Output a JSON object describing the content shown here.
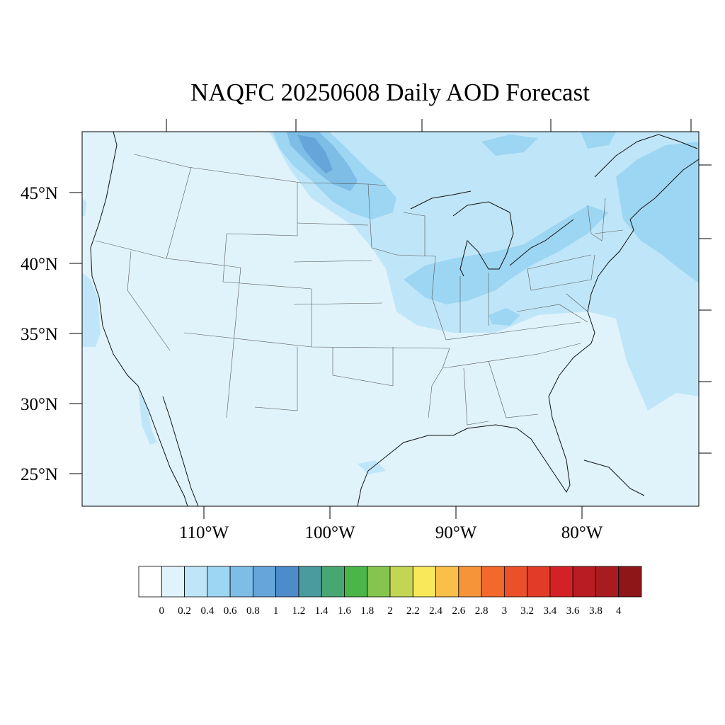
{
  "title": "NAQFC 20250608 Daily AOD Forecast",
  "lat_labels": [
    "45°N",
    "40°N",
    "35°N",
    "30°N",
    "25°N"
  ],
  "lon_labels": [
    "110°W",
    "100°W",
    "90°W",
    "80°W"
  ],
  "colorbar": {
    "labels": [
      "0",
      "0.2",
      "0.4",
      "0.6",
      "0.8",
      "1",
      "1.2",
      "1.4",
      "1.6",
      "1.8",
      "2",
      "2.2",
      "2.4",
      "2.6",
      "2.8",
      "3",
      "3.2",
      "3.4",
      "3.6",
      "3.8",
      "4"
    ],
    "colors": [
      "#ffffff",
      "#e0f3fb",
      "#bfe6f8",
      "#9dd6f3",
      "#7dbde6",
      "#65a5da",
      "#4c8ccb",
      "#4a9b9e",
      "#47a672",
      "#4bb54a",
      "#85c54f",
      "#c2d653",
      "#f8e85a",
      "#f9bf49",
      "#f59439",
      "#f2692b",
      "#ea502a",
      "#e23c28",
      "#d42127",
      "#b91c22",
      "#a81b20",
      "#8e1518"
    ]
  },
  "colors": {
    "background_aod": "#e0f3fb",
    "aod_02_04": "#bfe6f8",
    "aod_04_06": "#9dd6f3",
    "aod_06_08": "#7dbde6",
    "aod_08_10": "#65a5da"
  }
}
